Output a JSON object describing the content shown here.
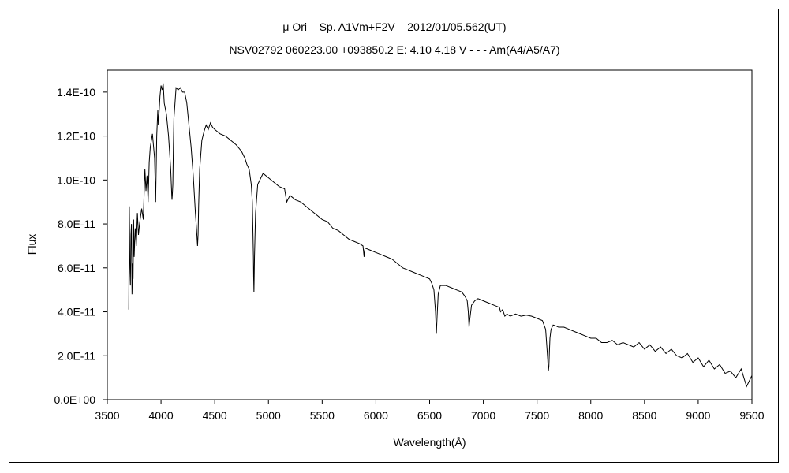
{
  "title_line_1": "μ Ori    Sp. A1Vm+F2V    2012/01/05.562(UT)",
  "title_line_2": "NSV02792 060223.00 +093850.2 E: 4.10 4.18 V - - - Am(A4/A5/A7)",
  "chart_data": {
    "type": "line",
    "xlabel": "Wavelength(Å)",
    "ylabel": "Flux",
    "xlim": [
      3500,
      9500
    ],
    "ylim": [
      0,
      1.5e-10
    ],
    "x_ticks": [
      3500,
      4000,
      4500,
      5000,
      5500,
      6000,
      6500,
      7000,
      7500,
      8000,
      8500,
      9000,
      9500
    ],
    "x_tick_labels": [
      "3500",
      "4000",
      "4500",
      "5000",
      "5500",
      "6000",
      "6500",
      "7000",
      "7500",
      "8000",
      "8500",
      "9000",
      "9500"
    ],
    "y_ticks": [
      0,
      2e-11,
      4e-11,
      6e-11,
      8e-11,
      1e-10,
      1.2e-10,
      1.4e-10
    ],
    "y_tick_labels": [
      "0.0E+00",
      "2.0E-11",
      "4.0E-11",
      "6.0E-11",
      "8.0E-11",
      "1.0E-10",
      "1.2E-10",
      "1.4E-10"
    ],
    "grid": false,
    "legend": "none",
    "line_color": "#000000",
    "series": [
      {
        "x": [
          3700,
          3705,
          3710,
          3715,
          3720,
          3725,
          3730,
          3735,
          3740,
          3745,
          3750,
          3760,
          3770,
          3780,
          3790,
          3800,
          3820,
          3835,
          3850,
          3860,
          3870,
          3880,
          3890,
          3900,
          3920,
          3940,
          3950,
          3960,
          3970,
          3975,
          3990,
          4000,
          4010,
          4020,
          4030,
          4050,
          4070,
          4090,
          4100,
          4102,
          4105,
          4110,
          4115,
          4120,
          4140,
          4160,
          4180,
          4200,
          4220,
          4240,
          4260,
          4280,
          4300,
          4320,
          4330,
          4340,
          4345,
          4350,
          4360,
          4380,
          4400,
          4420,
          4440,
          4460,
          4480,
          4500,
          4550,
          4600,
          4650,
          4700,
          4750,
          4780,
          4800,
          4820,
          4840,
          4850,
          4860,
          4862,
          4865,
          4870,
          4880,
          4900,
          4950,
          5000,
          5050,
          5100,
          5150,
          5170,
          5200,
          5250,
          5300,
          5350,
          5400,
          5450,
          5500,
          5550,
          5600,
          5650,
          5700,
          5750,
          5800,
          5850,
          5880,
          5890,
          5895,
          5900,
          5950,
          6000,
          6050,
          6100,
          6150,
          6200,
          6250,
          6300,
          6350,
          6400,
          6450,
          6500,
          6520,
          6540,
          6555,
          6563,
          6570,
          6580,
          6600,
          6650,
          6700,
          6750,
          6800,
          6830,
          6850,
          6860,
          6867,
          6875,
          6890,
          6920,
          6950,
          7000,
          7050,
          7100,
          7150,
          7160,
          7180,
          7200,
          7220,
          7250,
          7300,
          7350,
          7400,
          7450,
          7500,
          7550,
          7580,
          7590,
          7600,
          7605,
          7610,
          7615,
          7620,
          7630,
          7650,
          7680,
          7700,
          7750,
          7800,
          7850,
          7900,
          7950,
          8000,
          8050,
          8100,
          8150,
          8200,
          8250,
          8300,
          8350,
          8400,
          8450,
          8500,
          8550,
          8600,
          8650,
          8700,
          8750,
          8800,
          8850,
          8900,
          8950,
          9000,
          9050,
          9100,
          9150,
          9200,
          9250,
          9300,
          9350,
          9400,
          9450,
          9500
        ],
        "y": [
          4.1e-11,
          8.8e-11,
          6e-11,
          5.2e-11,
          7.5e-11,
          8e-11,
          4.8e-11,
          6.2e-11,
          5.5e-11,
          8.2e-11,
          6.5e-11,
          7.8e-11,
          7e-11,
          8.5e-11,
          7.5e-11,
          8e-11,
          8.7e-11,
          8.2e-11,
          1.05e-10,
          9.5e-11,
          1.02e-10,
          9e-11,
          1.08e-10,
          1.15e-10,
          1.21e-10,
          1.1e-10,
          9e-11,
          1.2e-10,
          1.32e-10,
          1.25e-10,
          1.38e-10,
          1.43e-10,
          1.41e-10,
          1.44e-10,
          1.35e-10,
          1.3e-10,
          1.2e-10,
          1.05e-10,
          9.3e-11,
          9.1e-11,
          9.3e-11,
          9.8e-11,
          1.15e-10,
          1.28e-10,
          1.42e-10,
          1.41e-10,
          1.42e-10,
          1.4e-10,
          1.4e-10,
          1.35e-10,
          1.25e-10,
          1.15e-10,
          1.02e-10,
          8.5e-11,
          7.8e-11,
          7e-11,
          7.5e-11,
          8.8e-11,
          1.05e-10,
          1.18e-10,
          1.22e-10,
          1.25e-10,
          1.23e-10,
          1.26e-10,
          1.24e-10,
          1.23e-10,
          1.21e-10,
          1.2e-10,
          1.18e-10,
          1.16e-10,
          1.13e-10,
          1.1e-10,
          1.07e-10,
          1.05e-10,
          9.8e-11,
          9e-11,
          6.5e-11,
          5.6e-11,
          4.9e-11,
          6.5e-11,
          8.5e-11,
          9.8e-11,
          1.03e-10,
          1.01e-10,
          9.9e-11,
          9.7e-11,
          9.6e-11,
          9e-11,
          9.3e-11,
          9.1e-11,
          9e-11,
          8.8e-11,
          8.6e-11,
          8.4e-11,
          8.2e-11,
          8.1e-11,
          7.8e-11,
          7.7e-11,
          7.5e-11,
          7.3e-11,
          7.2e-11,
          7.1e-11,
          7e-11,
          6.5e-11,
          6.8e-11,
          6.9e-11,
          6.8e-11,
          6.7e-11,
          6.6e-11,
          6.5e-11,
          6.4e-11,
          6.2e-11,
          6e-11,
          5.9e-11,
          5.8e-11,
          5.7e-11,
          5.6e-11,
          5.5e-11,
          5.3e-11,
          5e-11,
          4e-11,
          3e-11,
          3.8e-11,
          4.8e-11,
          5.2e-11,
          5.2e-11,
          5.1e-11,
          5e-11,
          4.9e-11,
          4.7e-11,
          4.5e-11,
          4e-11,
          3.3e-11,
          3.7e-11,
          4.3e-11,
          4.5e-11,
          4.6e-11,
          4.5e-11,
          4.4e-11,
          4.3e-11,
          4.2e-11,
          4e-11,
          4.1e-11,
          3.8e-11,
          3.9e-11,
          3.8e-11,
          3.9e-11,
          3.8e-11,
          3.85e-11,
          3.8e-11,
          3.7e-11,
          3.6e-11,
          3.2e-11,
          2.5e-11,
          1.8e-11,
          1.3e-11,
          1.5e-11,
          2.2e-11,
          2.8e-11,
          3.2e-11,
          3.4e-11,
          3.35e-11,
          3.3e-11,
          3.3e-11,
          3.2e-11,
          3.1e-11,
          3e-11,
          2.9e-11,
          2.8e-11,
          2.8e-11,
          2.6e-11,
          2.6e-11,
          2.7e-11,
          2.5e-11,
          2.6e-11,
          2.5e-11,
          2.4e-11,
          2.6e-11,
          2.3e-11,
          2.5e-11,
          2.2e-11,
          2.4e-11,
          2.1e-11,
          2.3e-11,
          2e-11,
          1.9e-11,
          2.1e-11,
          1.7e-11,
          1.9e-11,
          1.5e-11,
          1.8e-11,
          1.4e-11,
          1.6e-11,
          1.2e-11,
          1.3e-11,
          1e-11,
          1.4e-11,
          6e-12,
          1.1e-11
        ]
      }
    ]
  }
}
